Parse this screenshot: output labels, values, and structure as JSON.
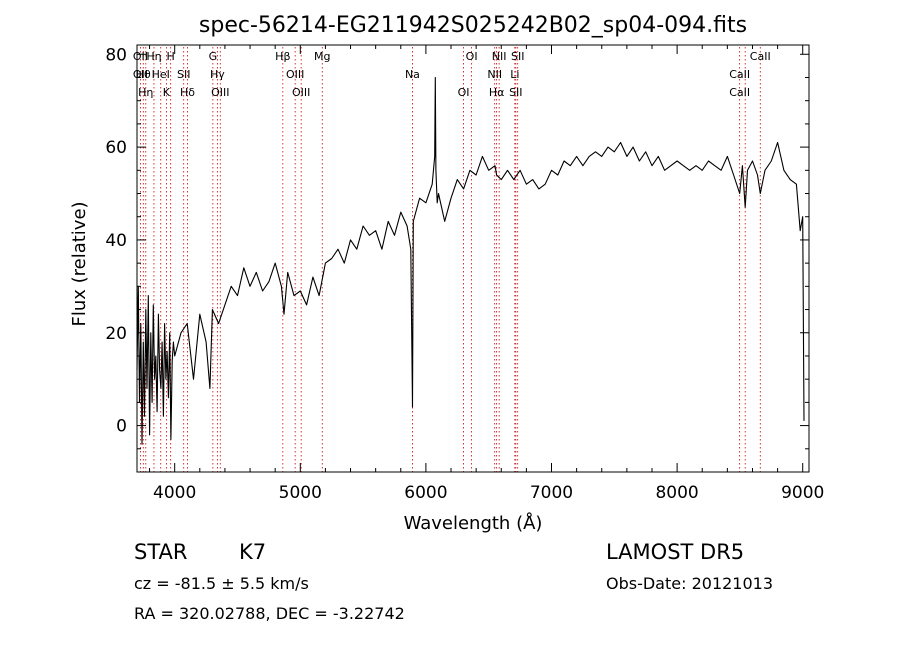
{
  "chart_data": {
    "type": "line",
    "title": "spec-56214-EG211942S025242B02_sp04-094.fits",
    "xlabel": "Wavelength (Å)",
    "ylabel": "Flux (relative)",
    "xlim": [
      3700,
      9050
    ],
    "ylim": [
      -10,
      82
    ],
    "x_ticks": [
      4000,
      5000,
      6000,
      7000,
      8000,
      9000
    ],
    "y_ticks": [
      0,
      20,
      40,
      60,
      80
    ],
    "grid": false,
    "line_color": "#000000",
    "marker_color": "#cc0000",
    "series": [
      {
        "x": [
          3700,
          3710,
          3720,
          3730,
          3740,
          3750,
          3760,
          3770,
          3780,
          3790,
          3800,
          3810,
          3820,
          3830,
          3840,
          3850,
          3860,
          3870,
          3880,
          3890,
          3900,
          3910,
          3920,
          3930,
          3940,
          3950,
          3960,
          3970,
          3980,
          3990,
          4000,
          4050,
          4100,
          4150,
          4200,
          4250,
          4280,
          4300,
          4350,
          4400,
          4450,
          4500,
          4550,
          4600,
          4650,
          4700,
          4750,
          4800,
          4850,
          4870,
          4900,
          4950,
          5000,
          5050,
          5100,
          5150,
          5200,
          5250,
          5300,
          5350,
          5400,
          5450,
          5500,
          5550,
          5600,
          5650,
          5700,
          5750,
          5800,
          5850,
          5880,
          5893,
          5900,
          5920,
          5950,
          6000,
          6050,
          6070,
          6075,
          6080,
          6090,
          6100,
          6150,
          6200,
          6250,
          6300,
          6350,
          6400,
          6450,
          6500,
          6550,
          6563,
          6600,
          6650,
          6700,
          6750,
          6800,
          6850,
          6900,
          6950,
          7000,
          7050,
          7100,
          7150,
          7200,
          7250,
          7300,
          7350,
          7400,
          7450,
          7500,
          7550,
          7600,
          7650,
          7700,
          7750,
          7800,
          7850,
          7900,
          7950,
          8000,
          8050,
          8100,
          8150,
          8200,
          8250,
          8300,
          8350,
          8400,
          8450,
          8498,
          8520,
          8542,
          8560,
          8600,
          8640,
          8662,
          8700,
          8750,
          8800,
          8850,
          8900,
          8950,
          8980,
          9000,
          9010
        ],
        "y": [
          12,
          30,
          5,
          22,
          -4,
          18,
          2,
          25,
          8,
          28,
          -2,
          20,
          5,
          26,
          10,
          15,
          3,
          24,
          12,
          8,
          18,
          2,
          22,
          10,
          16,
          6,
          20,
          -3,
          14,
          18,
          15,
          20,
          22,
          10,
          24,
          18,
          8,
          25,
          22,
          26,
          30,
          28,
          34,
          30,
          33,
          29,
          31,
          35,
          30,
          24,
          33,
          28,
          29,
          26,
          32,
          28,
          35,
          36,
          38,
          35,
          40,
          38,
          43,
          41,
          42,
          38,
          44,
          41,
          46,
          43,
          38,
          4,
          44,
          46,
          49,
          48,
          52,
          58,
          75,
          55,
          48,
          50,
          44,
          49,
          53,
          51,
          55,
          54,
          58,
          55,
          56,
          54,
          53,
          55,
          53,
          55,
          52,
          53,
          51,
          52,
          55,
          54,
          57,
          56,
          58,
          56,
          58,
          59,
          58,
          60,
          59,
          61,
          58,
          60,
          57,
          59,
          56,
          58,
          55,
          56,
          57,
          56,
          55,
          56,
          55,
          57,
          56,
          55,
          58,
          54,
          50,
          56,
          47,
          55,
          57,
          54,
          50,
          55,
          57,
          61,
          55,
          53,
          52,
          42,
          45,
          1
        ]
      }
    ],
    "line_markers": [
      {
        "wavelength": 3727,
        "labels": [
          "OII",
          "OII"
        ]
      },
      {
        "wavelength": 3750,
        "labels": [
          "Hθ"
        ]
      },
      {
        "wavelength": 3770,
        "labels": [
          "Hη"
        ]
      },
      {
        "wavelength": 3835,
        "labels": [
          "Hη"
        ]
      },
      {
        "wavelength": 3889,
        "labels": [
          "HeI"
        ]
      },
      {
        "wavelength": 3934,
        "labels": [
          "K"
        ]
      },
      {
        "wavelength": 3968,
        "labels": [
          "H"
        ]
      },
      {
        "wavelength": 4072,
        "labels": [
          "SII"
        ]
      },
      {
        "wavelength": 4102,
        "labels": [
          "Hδ"
        ]
      },
      {
        "wavelength": 4304,
        "labels": [
          "G"
        ]
      },
      {
        "wavelength": 4340,
        "labels": [
          "Hγ"
        ]
      },
      {
        "wavelength": 4363,
        "labels": [
          "OIII"
        ]
      },
      {
        "wavelength": 4861,
        "labels": [
          "Hβ"
        ]
      },
      {
        "wavelength": 4959,
        "labels": [
          "OIII"
        ]
      },
      {
        "wavelength": 5007,
        "labels": [
          "OIII"
        ]
      },
      {
        "wavelength": 5175,
        "labels": [
          "Mg"
        ]
      },
      {
        "wavelength": 5893,
        "labels": [
          "Na"
        ]
      },
      {
        "wavelength": 6300,
        "labels": [
          "OI"
        ]
      },
      {
        "wavelength": 6364,
        "labels": [
          "OI"
        ]
      },
      {
        "wavelength": 6548,
        "labels": [
          "NII"
        ]
      },
      {
        "wavelength": 6563,
        "labels": [
          "Hα"
        ]
      },
      {
        "wavelength": 6583,
        "labels": [
          "NII"
        ]
      },
      {
        "wavelength": 6708,
        "labels": [
          "Li"
        ]
      },
      {
        "wavelength": 6716,
        "labels": [
          "SII"
        ]
      },
      {
        "wavelength": 6731,
        "labels": [
          "SII"
        ]
      },
      {
        "wavelength": 8498,
        "labels": [
          "CaII",
          "CaII"
        ]
      },
      {
        "wavelength": 8542,
        "labels": []
      },
      {
        "wavelength": 8662,
        "labels": [
          "CaII"
        ]
      }
    ]
  },
  "info": {
    "object_class": "STAR",
    "subclass": "K7",
    "survey": "LAMOST DR5",
    "redshift": "cz = -81.5 ± 5.5 km/s",
    "obs_date": "Obs-Date: 20121013",
    "coords": "RA = 320.02788, DEC =  -3.22742"
  }
}
